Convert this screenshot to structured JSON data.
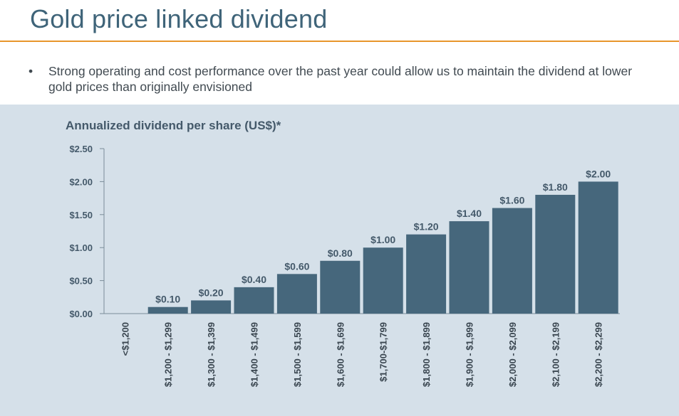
{
  "slide": {
    "title": "Gold price linked dividend",
    "bullet_marker": "•",
    "bullet_text": "Strong operating and cost performance over the past year could allow us to maintain the dividend at lower gold prices than originally envisioned"
  },
  "colors": {
    "title": "#3f6479",
    "rule": "#e8952c",
    "panel": "#d5e0e9",
    "bar": "#46677c",
    "axis": "#7a8c99"
  },
  "chart_data": {
    "type": "bar",
    "title": "Annualized dividend per share (US$)*",
    "xlabel": "",
    "ylabel": "",
    "ylim": [
      0,
      2.5
    ],
    "yticks": [
      0,
      0.5,
      1.0,
      1.5,
      2.0,
      2.5
    ],
    "ytick_labels": [
      "$0.00",
      "$0.50",
      "$1.00",
      "$1.50",
      "$2.00",
      "$2.50"
    ],
    "categories": [
      "<$1,200",
      "$1,200 - $1,299",
      "$1,300 - $1,399",
      "$1,400 - $1,499",
      "$1,500 - $1,599",
      "$1,600 - $1,699",
      "$1,700-$1,799",
      "$1,800 - $1,899",
      "$1,900 - $1,999",
      "$2,000 - $2,099",
      "$2,100 - $2,199",
      "$2,200 - $2,299"
    ],
    "values": [
      0,
      0.1,
      0.2,
      0.4,
      0.6,
      0.8,
      1.0,
      1.2,
      1.4,
      1.6,
      1.8,
      2.0
    ],
    "data_labels": [
      "",
      "$0.10",
      "$0.20",
      "$0.40",
      "$0.60",
      "$0.80",
      "$1.00",
      "$1.20",
      "$1.40",
      "$1.60",
      "$1.80",
      "$2.00"
    ],
    "grid": false,
    "legend": "none"
  }
}
